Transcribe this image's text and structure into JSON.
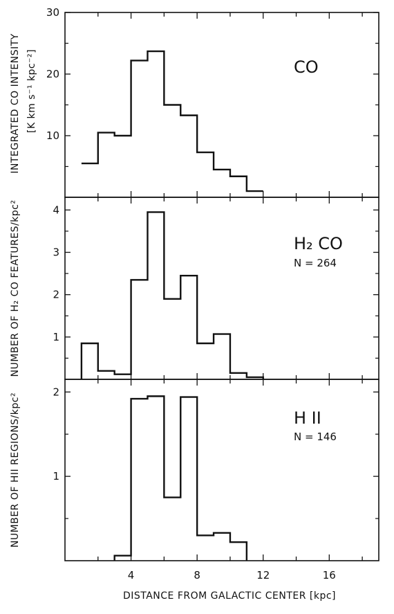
{
  "chart_data": [
    {
      "type": "bar",
      "label": "CO",
      "n_label": "",
      "ylabel": "INTEGRATED CO INTENSITY",
      "ylabel2": "[K km s⁻¹ kpc⁻²]",
      "ylim": [
        0,
        30
      ],
      "yticks": [
        10,
        20,
        30
      ],
      "ytick_labels": [
        "10",
        "20",
        "30"
      ],
      "bin_edges": [
        1,
        2,
        3,
        4,
        5,
        6,
        7,
        8,
        9,
        10,
        11,
        12
      ],
      "values": [
        5.5,
        10.5,
        10.0,
        22.2,
        23.7,
        15.0,
        13.3,
        7.3,
        4.5,
        3.4,
        1.0
      ]
    },
    {
      "type": "bar",
      "label": "H₂ CO",
      "n_label": "N = 264",
      "ylabel": "NUMBER OF H₂ CO FEATURES/kpc²",
      "ylabel2": "",
      "ylim": [
        0,
        4.3
      ],
      "yticks": [
        1,
        2,
        3,
        4
      ],
      "ytick_labels": [
        "1",
        "2",
        "3",
        "4"
      ],
      "bin_edges": [
        1,
        2,
        3,
        4,
        5,
        6,
        7,
        8,
        9,
        10,
        11,
        12
      ],
      "values": [
        0.85,
        0.2,
        0.12,
        2.35,
        3.95,
        1.9,
        2.45,
        0.85,
        1.07,
        0.15,
        0.05
      ]
    },
    {
      "type": "bar",
      "label": "H II",
      "n_label": "N = 146",
      "ylabel": "NUMBER OF HII REGIONS/kpc²",
      "ylabel2": "",
      "ylim": [
        0,
        2.15
      ],
      "yticks": [
        1,
        2
      ],
      "ytick_labels": [
        "1",
        "2"
      ],
      "bin_edges": [
        3,
        4,
        5,
        6,
        7,
        8,
        9,
        10,
        11
      ],
      "values": [
        0.06,
        1.92,
        1.95,
        0.75,
        1.94,
        0.3,
        0.33,
        0.22
      ]
    }
  ],
  "x_axis": {
    "xlabel": "DISTANCE FROM GALACTIC CENTER [kpc]",
    "xlim": [
      0,
      19
    ],
    "xticks": [
      4,
      8,
      12,
      16
    ],
    "xtick_labels": [
      "4",
      "8",
      "12",
      "16"
    ]
  }
}
